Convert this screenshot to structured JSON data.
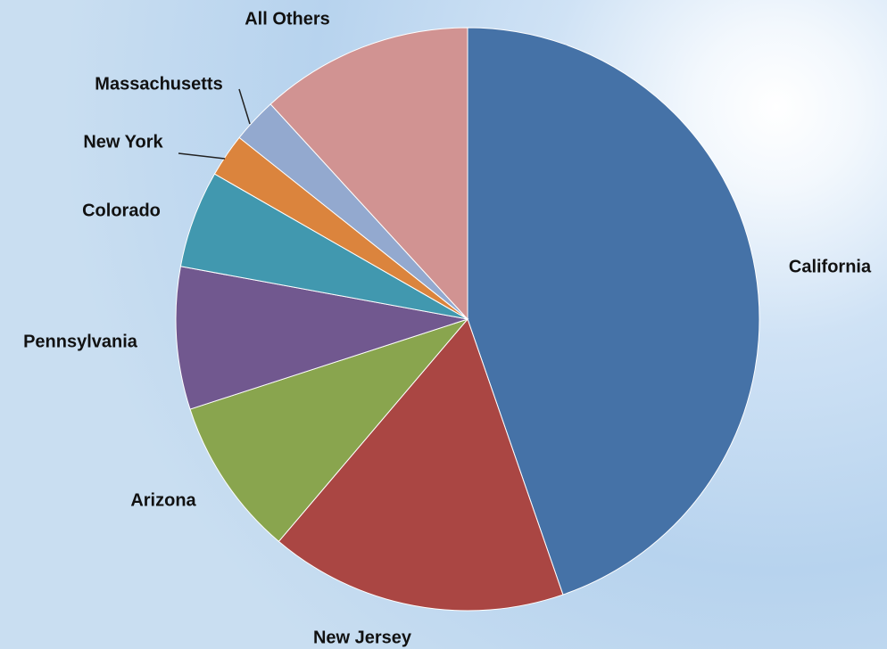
{
  "chart_data": {
    "type": "pie",
    "categories": [
      "California",
      "New Jersey",
      "Arizona",
      "Pennsylvania",
      "Colorado",
      "New York",
      "Massachusetts",
      "All Others"
    ],
    "values": [
      44.7,
      16.5,
      8.8,
      7.9,
      5.4,
      2.4,
      2.5,
      11.8
    ],
    "colors": [
      "#4572a7",
      "#aa4643",
      "#89a54e",
      "#71588f",
      "#4198af",
      "#db843d",
      "#93a9cf",
      "#d19392"
    ]
  }
}
